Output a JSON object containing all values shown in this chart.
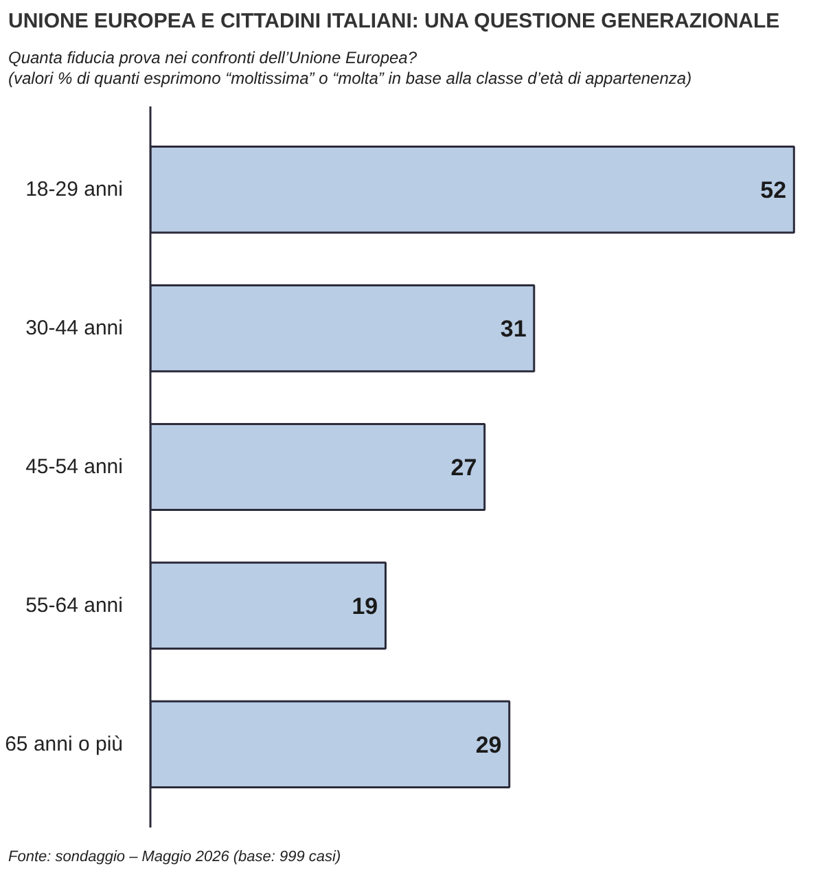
{
  "chart_data": {
    "type": "bar",
    "orientation": "horizontal",
    "title": "UNIONE EUROPEA E CITTADINI ITALIANI: UNA QUESTIONE GENERAZIONALE",
    "subtitle": "Quanta fiducia prova nei confronti dell’Unione Europea?\n(valori % di quanti esprimono “moltissima” o “molta” in base alla classe d’età di appartenenza)",
    "categories": [
      "18-29 anni",
      "30-44 anni",
      "45-54 anni",
      "55-64 anni",
      "65 anni o più"
    ],
    "values": [
      52,
      31,
      27,
      19,
      29
    ],
    "color": "#b9cde5",
    "data_labels": true,
    "grid": false,
    "annotations": [
      "Fonte: sondaggio – Maggio 2026 (base: 999 casi)"
    ]
  }
}
